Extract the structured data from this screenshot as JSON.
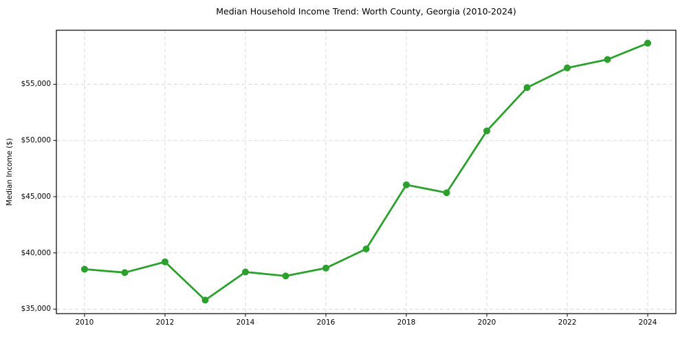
{
  "figure": {
    "title": "Median Household Income Trend: Worth County, Georgia (2010-2024)",
    "ylabel": "Median Income ($)"
  },
  "colors": {
    "line": "#2ca02c",
    "marker": "#2ca02c",
    "grid": "#d9d9d9",
    "spine": "#000000",
    "text": "#000000",
    "background": "#ffffff"
  },
  "chart_data": {
    "type": "line",
    "title": "Median Household Income Trend: Worth County, Georgia (2010-2024)",
    "xlabel": "",
    "ylabel": "Median Income ($)",
    "series": [
      {
        "name": "Median Household Income",
        "x": [
          2010,
          2011,
          2012,
          2013,
          2014,
          2015,
          2016,
          2017,
          2018,
          2019,
          2020,
          2021,
          2022,
          2023,
          2024
        ],
        "values": [
          38550,
          38250,
          39200,
          35800,
          38300,
          37950,
          38650,
          40350,
          46050,
          45350,
          50850,
          54700,
          56450,
          57200,
          58650
        ]
      }
    ],
    "xlim": [
      2009.3,
      2024.7
    ],
    "ylim": [
      34600,
      59800
    ],
    "x_ticks": [
      2010,
      2012,
      2014,
      2016,
      2018,
      2020,
      2022,
      2024
    ],
    "x_tick_labels": [
      "2010",
      "2012",
      "2014",
      "2016",
      "2018",
      "2020",
      "2022",
      "2024"
    ],
    "y_ticks": [
      35000,
      40000,
      45000,
      50000,
      55000
    ],
    "y_tick_labels": [
      "$35,000",
      "$40,000",
      "$45,000",
      "$50,000",
      "$55,000"
    ],
    "grid": true,
    "grid_style": "dashed",
    "legend": "none",
    "marker": "circle"
  }
}
